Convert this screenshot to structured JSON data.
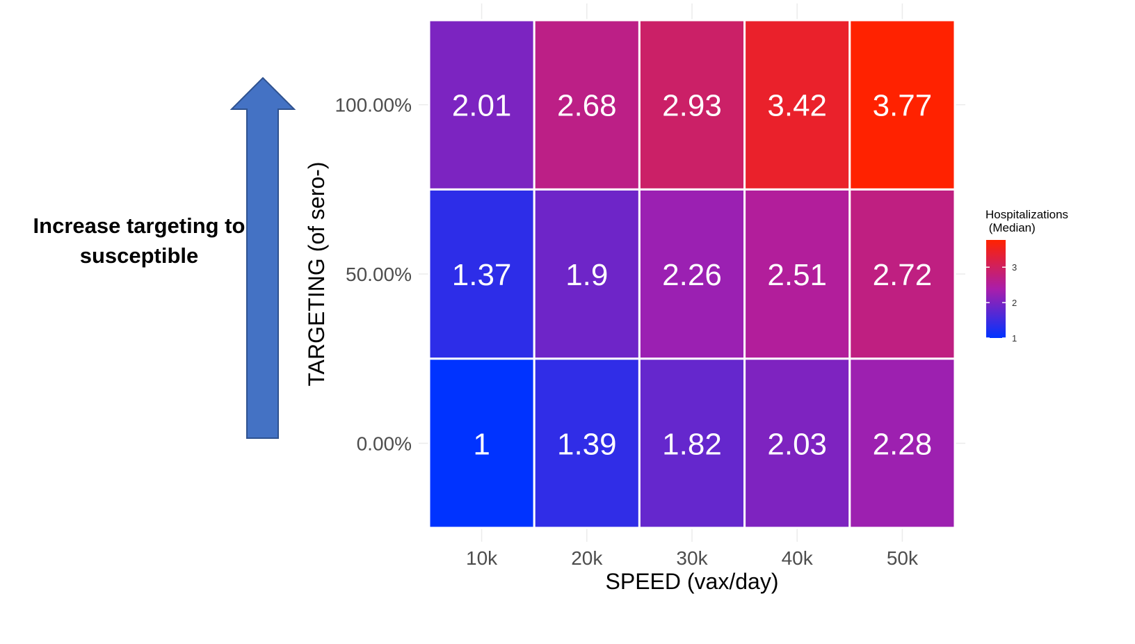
{
  "annotation": {
    "line1": "Increase targeting to",
    "line2": "susceptible",
    "arrow_color": "#4472C4",
    "arrow_border": "#2F528F",
    "arrow_icon": "up-arrow-icon"
  },
  "chart_data": {
    "type": "heatmap",
    "xlabel": "SPEED (vax/day)",
    "ylabel": "TARGETING (of sero-)",
    "x_categories": [
      "10k",
      "20k",
      "30k",
      "40k",
      "50k"
    ],
    "y_categories": [
      "0.00%",
      "50.00%",
      "100.00%"
    ],
    "values": [
      [
        1,
        1.39,
        1.82,
        2.03,
        2.28
      ],
      [
        1.37,
        1.9,
        2.26,
        2.51,
        2.72
      ],
      [
        2.01,
        2.68,
        2.93,
        3.42,
        3.77
      ]
    ],
    "value_labels": [
      [
        "1",
        "1.39",
        "1.82",
        "2.03",
        "2.28"
      ],
      [
        "1.37",
        "1.9",
        "2.26",
        "2.51",
        "2.72"
      ],
      [
        "2.01",
        "2.68",
        "2.93",
        "3.42",
        "3.77"
      ]
    ],
    "legend": {
      "title_line1": "Hospitalizations",
      "title_line2": " (Median)",
      "ticks": [
        "1",
        "2",
        "3"
      ],
      "range": [
        1,
        3.77
      ],
      "low_color": "#0033FF",
      "high_color": "#FF2200",
      "placement": "right"
    },
    "grid": true
  }
}
